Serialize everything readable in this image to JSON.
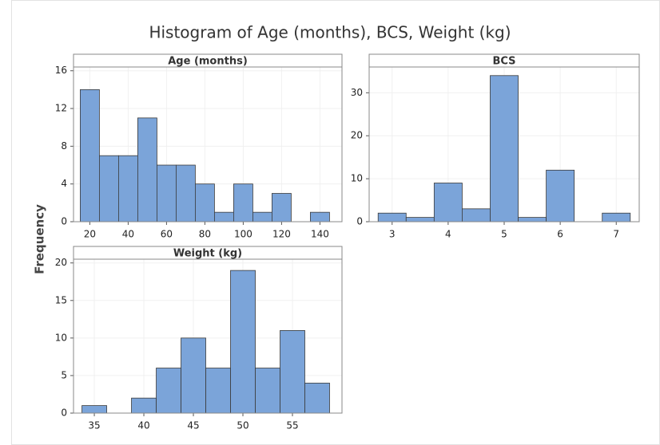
{
  "title": "Histogram of Age (months), BCS, Weight (kg)",
  "y_label": "Frequency",
  "chart_data": [
    {
      "type": "histogram",
      "title": "Age (months)",
      "color": "#7ba4d9",
      "bins": [
        15,
        25,
        35,
        45,
        55,
        65,
        75,
        85,
        95,
        105,
        115,
        125,
        135,
        145
      ],
      "counts": [
        14,
        7,
        7,
        11,
        6,
        6,
        4,
        1,
        4,
        1,
        3,
        0,
        1
      ],
      "xlim": [
        11.5,
        151.5
      ],
      "xticks": [
        20,
        40,
        60,
        80,
        100,
        120,
        140
      ],
      "ylim": [
        0,
        16.4
      ],
      "yticks": [
        0,
        4,
        8,
        12,
        16
      ],
      "grid": true
    },
    {
      "type": "histogram",
      "title": "BCS",
      "color": "#7ba4d9",
      "bins": [
        2.75,
        3.25,
        3.75,
        4.25,
        4.75,
        5.25,
        5.75,
        6.25,
        6.75,
        7.25
      ],
      "counts": [
        2,
        1,
        9,
        3,
        34,
        1,
        12,
        0,
        2
      ],
      "xlim": [
        2.59,
        7.41
      ],
      "xticks": [
        3,
        4,
        5,
        6,
        7
      ],
      "ylim": [
        0,
        36
      ],
      "yticks": [
        0,
        10,
        20,
        30
      ],
      "grid": true
    },
    {
      "type": "histogram",
      "title": "Weight (kg)",
      "color": "#7ba4d9",
      "bins": [
        33.75,
        36.25,
        38.75,
        41.25,
        43.75,
        46.25,
        48.75,
        51.25,
        53.75,
        56.25,
        58.75
      ],
      "counts": [
        1,
        0,
        2,
        6,
        10,
        6,
        19,
        6,
        11,
        4
      ],
      "xlim": [
        32.9,
        60
      ],
      "xticks": [
        35,
        40,
        45,
        50,
        55
      ],
      "ylim": [
        0,
        20.5
      ],
      "yticks": [
        0,
        5,
        10,
        15,
        20
      ],
      "grid": true
    }
  ]
}
